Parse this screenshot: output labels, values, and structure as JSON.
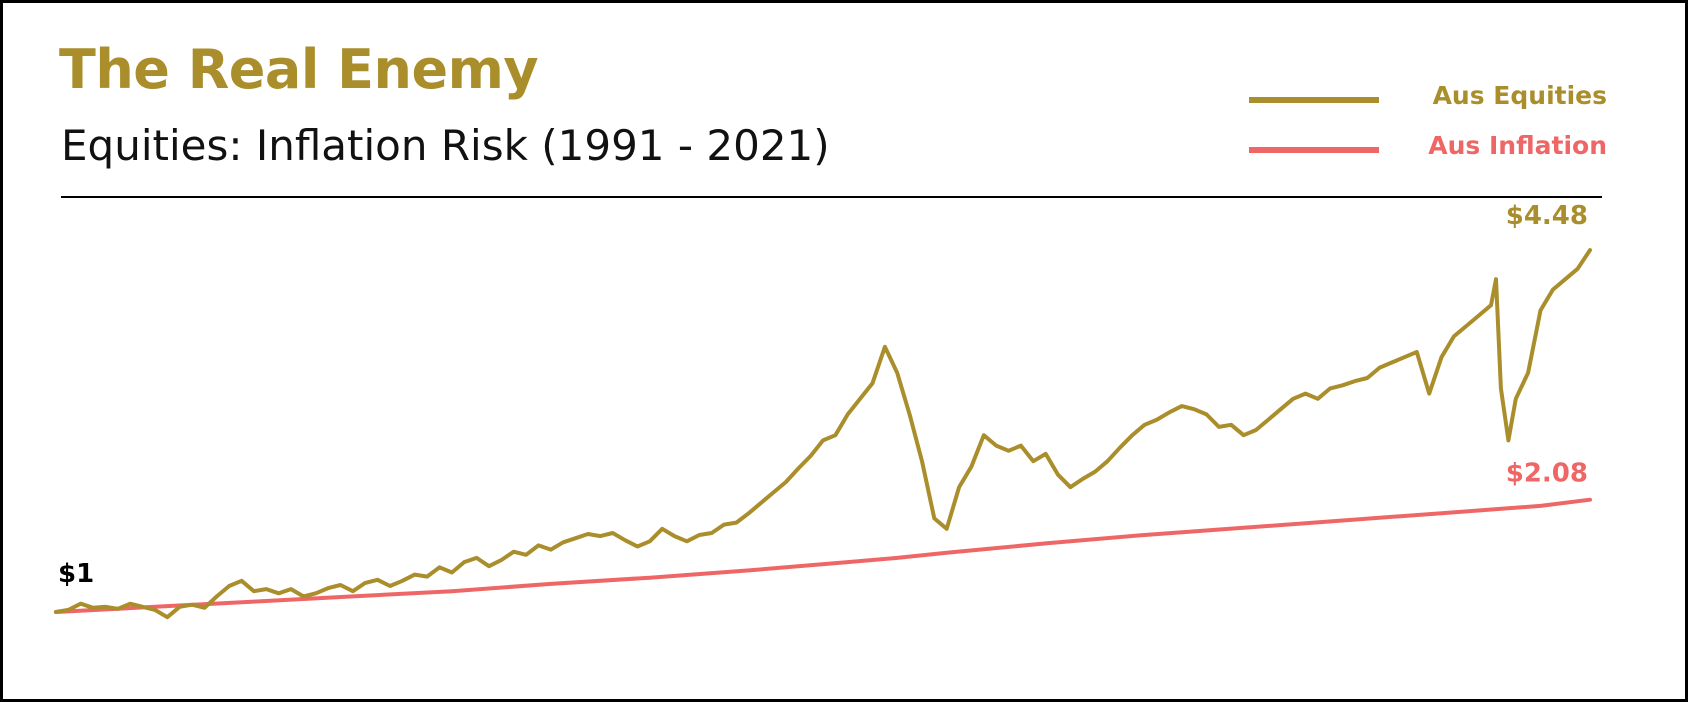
{
  "colors": {
    "equities": "#a98e2b",
    "inflation": "#ee6766",
    "text": "#000000"
  },
  "chart_data": {
    "type": "line",
    "title": "The Real Enemy",
    "subtitle": "Equities: Inflation Risk (1991 - 2021)",
    "x_range": [
      1991,
      2021
    ],
    "ylim": [
      0.7,
      5.0
    ],
    "grid": false,
    "legend": {
      "placement": "top-right",
      "entries": [
        "Aus Equities",
        "Aus Inflation"
      ]
    },
    "start_label": "$1",
    "series": [
      {
        "name": "Aus Equities",
        "end_label": "$4.48",
        "points": [
          [
            1991.0,
            1.0
          ],
          [
            1991.25,
            1.02
          ],
          [
            1991.5,
            1.08
          ],
          [
            1991.75,
            1.04
          ],
          [
            1992.0,
            1.05
          ],
          [
            1992.25,
            1.03
          ],
          [
            1992.5,
            1.08
          ],
          [
            1992.75,
            1.05
          ],
          [
            1993.0,
            1.02
          ],
          [
            1993.25,
            0.95
          ],
          [
            1993.5,
            1.05
          ],
          [
            1993.75,
            1.07
          ],
          [
            1994.0,
            1.04
          ],
          [
            1994.25,
            1.15
          ],
          [
            1994.5,
            1.25
          ],
          [
            1994.75,
            1.3
          ],
          [
            1995.0,
            1.2
          ],
          [
            1995.25,
            1.22
          ],
          [
            1995.5,
            1.18
          ],
          [
            1995.75,
            1.22
          ],
          [
            1996.0,
            1.15
          ],
          [
            1996.25,
            1.18
          ],
          [
            1996.5,
            1.23
          ],
          [
            1996.75,
            1.26
          ],
          [
            1997.0,
            1.2
          ],
          [
            1997.25,
            1.28
          ],
          [
            1997.5,
            1.31
          ],
          [
            1997.75,
            1.25
          ],
          [
            1998.0,
            1.3
          ],
          [
            1998.25,
            1.36
          ],
          [
            1998.5,
            1.34
          ],
          [
            1998.75,
            1.43
          ],
          [
            1999.0,
            1.38
          ],
          [
            1999.25,
            1.48
          ],
          [
            1999.5,
            1.52
          ],
          [
            1999.75,
            1.44
          ],
          [
            2000.0,
            1.5
          ],
          [
            2000.25,
            1.58
          ],
          [
            2000.5,
            1.55
          ],
          [
            2000.75,
            1.64
          ],
          [
            2001.0,
            1.6
          ],
          [
            2001.25,
            1.67
          ],
          [
            2001.5,
            1.71
          ],
          [
            2001.75,
            1.75
          ],
          [
            2002.0,
            1.73
          ],
          [
            2002.25,
            1.76
          ],
          [
            2002.5,
            1.69
          ],
          [
            2002.75,
            1.63
          ],
          [
            2003.0,
            1.68
          ],
          [
            2003.25,
            1.8
          ],
          [
            2003.5,
            1.73
          ],
          [
            2003.75,
            1.68
          ],
          [
            2004.0,
            1.74
          ],
          [
            2004.25,
            1.76
          ],
          [
            2004.5,
            1.84
          ],
          [
            2004.75,
            1.86
          ],
          [
            2005.0,
            1.95
          ],
          [
            2005.25,
            2.05
          ],
          [
            2005.5,
            2.15
          ],
          [
            2005.75,
            2.25
          ],
          [
            2006.0,
            2.38
          ],
          [
            2006.25,
            2.5
          ],
          [
            2006.5,
            2.65
          ],
          [
            2006.75,
            2.7
          ],
          [
            2007.0,
            2.9
          ],
          [
            2007.25,
            3.05
          ],
          [
            2007.5,
            3.2
          ],
          [
            2007.75,
            3.55
          ],
          [
            2008.0,
            3.3
          ],
          [
            2008.25,
            2.9
          ],
          [
            2008.5,
            2.45
          ],
          [
            2008.75,
            1.9
          ],
          [
            2009.0,
            1.8
          ],
          [
            2009.25,
            2.2
          ],
          [
            2009.5,
            2.4
          ],
          [
            2009.75,
            2.7
          ],
          [
            2010.0,
            2.6
          ],
          [
            2010.25,
            2.55
          ],
          [
            2010.5,
            2.6
          ],
          [
            2010.75,
            2.45
          ],
          [
            2011.0,
            2.52
          ],
          [
            2011.25,
            2.32
          ],
          [
            2011.5,
            2.2
          ],
          [
            2011.75,
            2.28
          ],
          [
            2012.0,
            2.35
          ],
          [
            2012.25,
            2.45
          ],
          [
            2012.5,
            2.58
          ],
          [
            2012.75,
            2.7
          ],
          [
            2013.0,
            2.8
          ],
          [
            2013.25,
            2.85
          ],
          [
            2013.5,
            2.92
          ],
          [
            2013.75,
            2.98
          ],
          [
            2014.0,
            2.95
          ],
          [
            2014.25,
            2.9
          ],
          [
            2014.5,
            2.78
          ],
          [
            2014.75,
            2.8
          ],
          [
            2015.0,
            2.7
          ],
          [
            2015.25,
            2.75
          ],
          [
            2015.5,
            2.85
          ],
          [
            2015.75,
            2.95
          ],
          [
            2016.0,
            3.05
          ],
          [
            2016.25,
            3.1
          ],
          [
            2016.5,
            3.05
          ],
          [
            2016.75,
            3.15
          ],
          [
            2017.0,
            3.18
          ],
          [
            2017.25,
            3.22
          ],
          [
            2017.5,
            3.25
          ],
          [
            2017.75,
            3.35
          ],
          [
            2018.0,
            3.4
          ],
          [
            2018.25,
            3.45
          ],
          [
            2018.5,
            3.5
          ],
          [
            2018.75,
            3.1
          ],
          [
            2019.0,
            3.45
          ],
          [
            2019.25,
            3.65
          ],
          [
            2019.5,
            3.75
          ],
          [
            2019.75,
            3.85
          ],
          [
            2020.0,
            3.95
          ],
          [
            2020.1,
            4.2
          ],
          [
            2020.2,
            3.15
          ],
          [
            2020.35,
            2.65
          ],
          [
            2020.5,
            3.05
          ],
          [
            2020.75,
            3.3
          ],
          [
            2021.0,
            3.9
          ],
          [
            2021.25,
            4.1
          ],
          [
            2021.5,
            4.2
          ],
          [
            2021.75,
            4.3
          ],
          [
            2022.0,
            4.48
          ]
        ]
      },
      {
        "name": "Aus Inflation",
        "end_label": "$2.08",
        "points": [
          [
            1991.0,
            1.0
          ],
          [
            1993.0,
            1.05
          ],
          [
            1995.0,
            1.1
          ],
          [
            1997.0,
            1.15
          ],
          [
            1999.0,
            1.2
          ],
          [
            2001.0,
            1.27
          ],
          [
            2003.0,
            1.33
          ],
          [
            2005.0,
            1.4
          ],
          [
            2007.0,
            1.48
          ],
          [
            2008.0,
            1.52
          ],
          [
            2009.0,
            1.57
          ],
          [
            2011.0,
            1.66
          ],
          [
            2013.0,
            1.74
          ],
          [
            2015.0,
            1.81
          ],
          [
            2017.0,
            1.88
          ],
          [
            2019.0,
            1.95
          ],
          [
            2021.0,
            2.02
          ],
          [
            2022.0,
            2.08
          ]
        ]
      }
    ]
  }
}
